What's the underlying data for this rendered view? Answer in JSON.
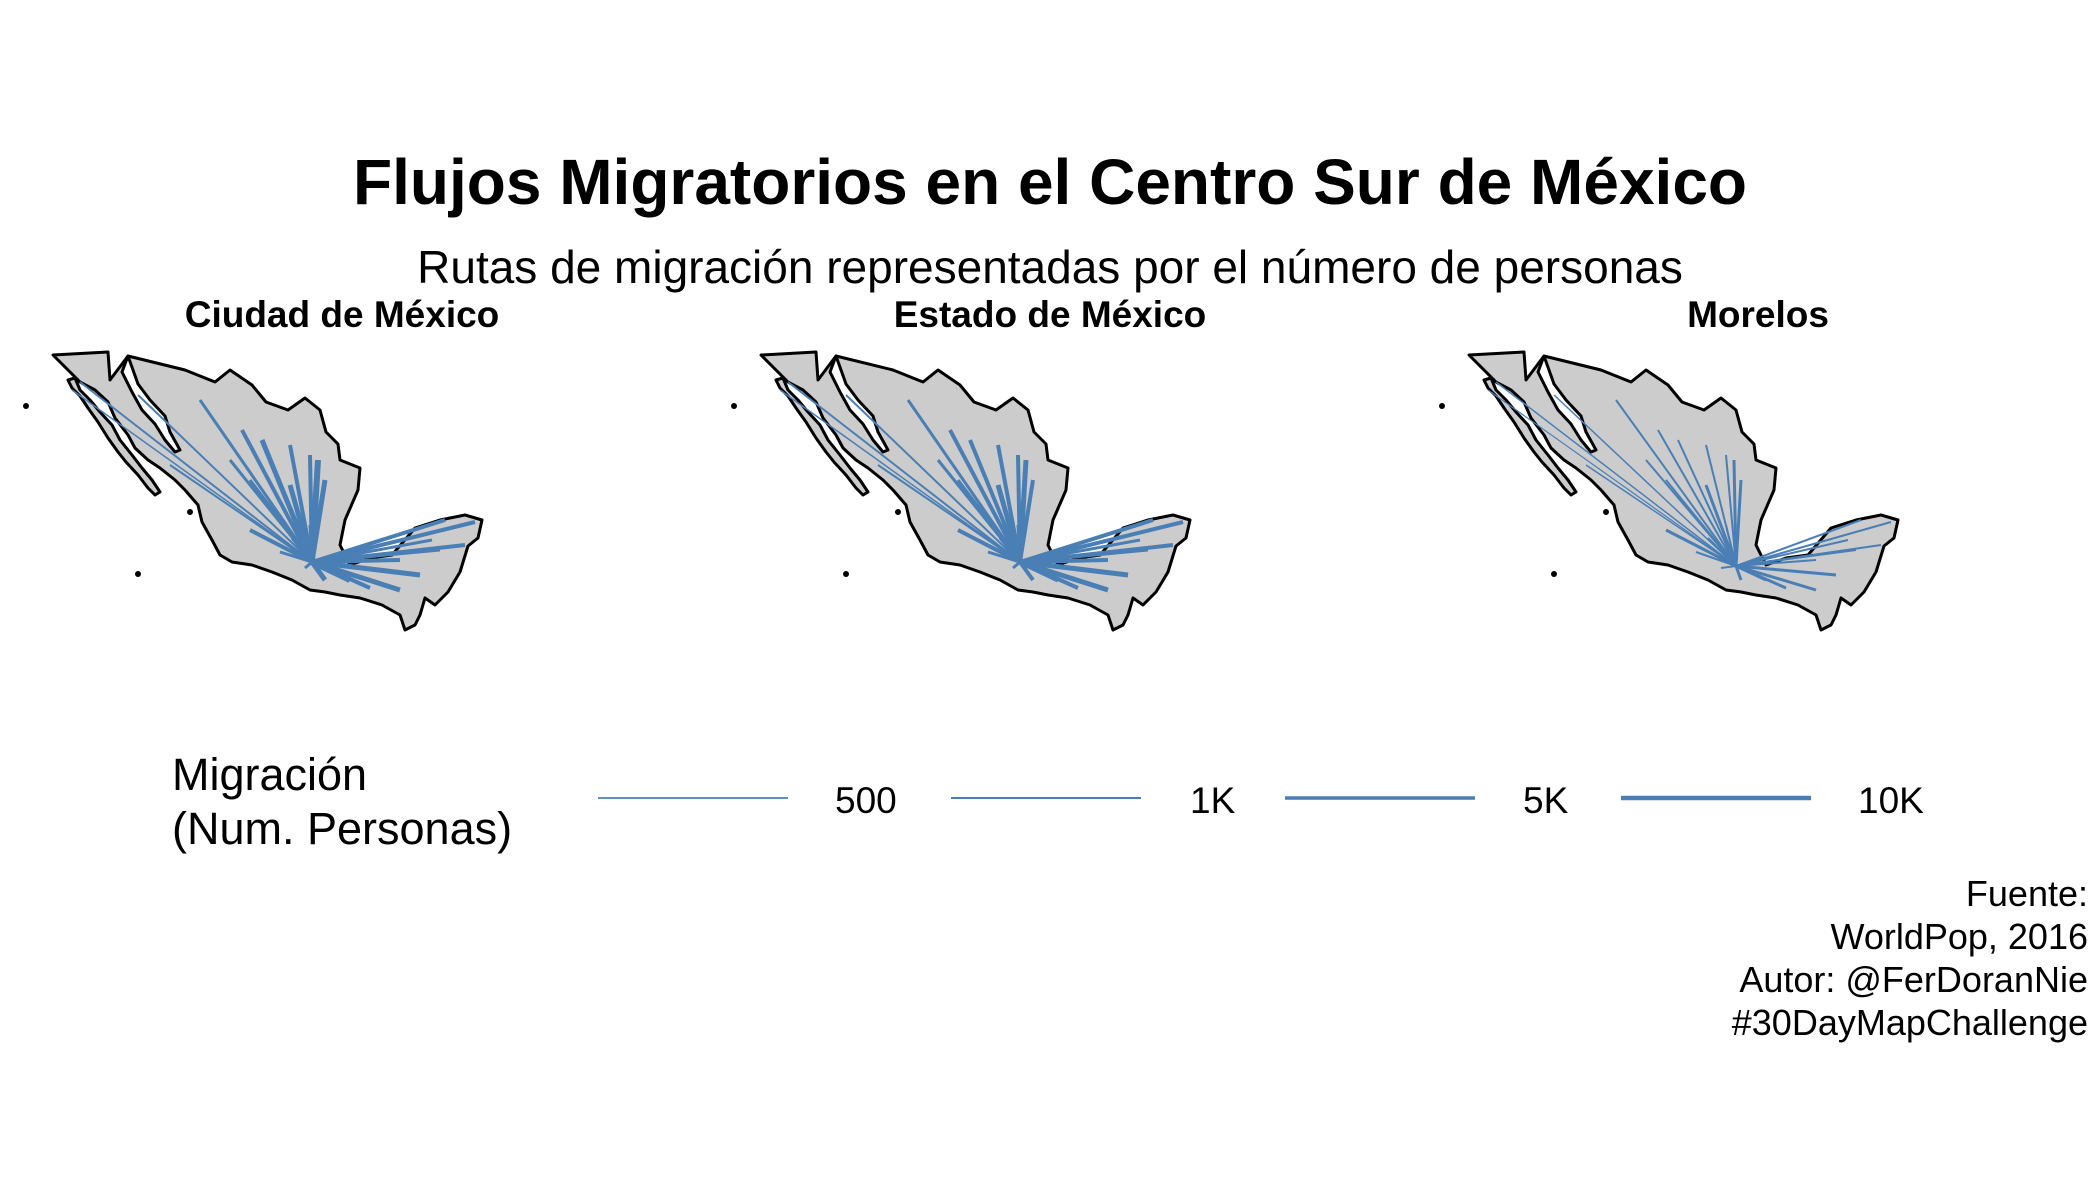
{
  "title": "Flujos Migratorios en el Centro Sur de México",
  "subtitle": "Rutas de migración representadas por el número de personas",
  "colors": {
    "land": "#cccccc",
    "border": "#000000",
    "flow": "#4a7fb5"
  },
  "facets": [
    {
      "label": "Ciudad de México",
      "origin": "Ciudad de México"
    },
    {
      "label": "Estado de México",
      "origin": "Estado de México"
    },
    {
      "label": "Morelos",
      "origin": "Morelos"
    }
  ],
  "legend": {
    "title_line1": "Migración",
    "title_line2": "(Num. Personas)",
    "items": [
      {
        "label": "500",
        "value": 500
      },
      {
        "label": "1K",
        "value": 1000
      },
      {
        "label": "5K",
        "value": 5000
      },
      {
        "label": "10K",
        "value": 10000
      }
    ]
  },
  "caption": {
    "line1": "Fuente:",
    "line2": "WorldPop, 2016",
    "line3": "Autor:  @FerDoranNie",
    "line4": "#30DayMapChallenge"
  }
}
